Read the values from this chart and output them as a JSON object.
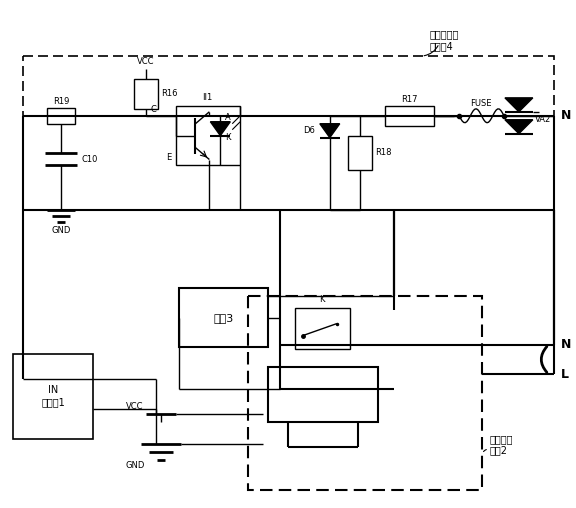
{
  "figsize": [
    5.76,
    5.08
  ],
  "dpi": 100,
  "bg_color": "#ffffff",
  "label_circuit4": "水泵运行检\n测电路4",
  "label_controller": "IN\n主控器1",
  "label_pump": "水泵3",
  "label_ultrasonic": "超声波液\n位计2",
  "label_N_top": "N",
  "label_N_bottom": "N",
  "label_L": "L",
  "label_VCC_top": "VCC",
  "label_VCC_bot": "VCC",
  "label_GND_top": "GND",
  "label_GND_bot": "GND",
  "label_R16": "R16",
  "label_R17": "R17",
  "label_R18": "R18",
  "label_R19": "R19",
  "label_C10": "C10",
  "label_II1": "II1",
  "label_A": "A",
  "label_K_switch": "K",
  "label_K_relay": "K",
  "label_C": "C",
  "label_E": "E",
  "label_D6": "D6",
  "label_VA2": "VA2",
  "label_FUSE": "FUSE"
}
